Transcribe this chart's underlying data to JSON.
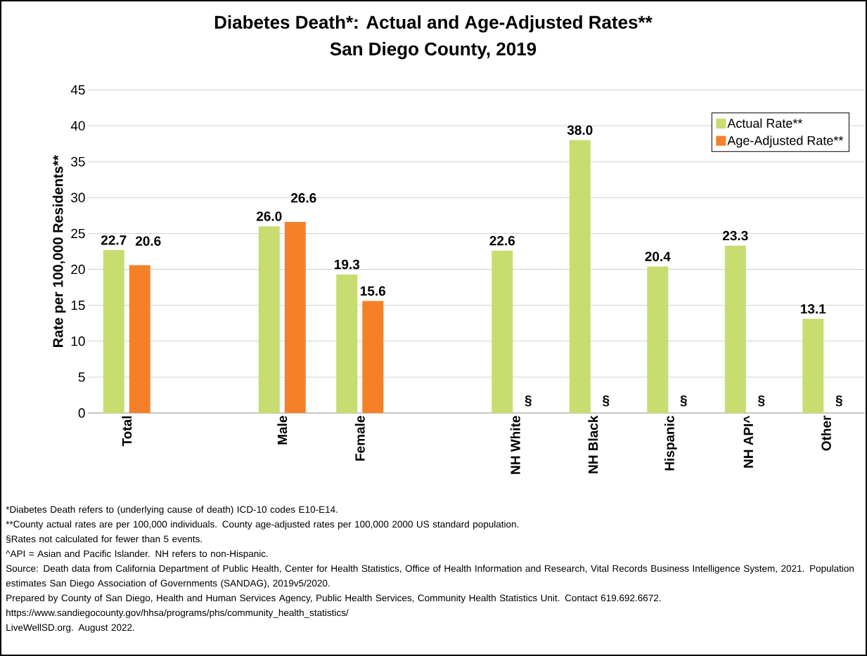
{
  "chart_data": {
    "type": "bar",
    "title": "Diabetes Death*: Actual and Age-Adjusted Rates**",
    "subtitle": "San Diego County, 2019",
    "ylabel": "Rate per 100,000 Residents**",
    "categories": [
      "Total",
      null,
      "Male",
      "Female",
      null,
      "NH White",
      "NH Black",
      "Hispanic",
      "NH API^",
      "Other"
    ],
    "series": [
      {
        "name": "Actual Rate**",
        "color": "#c7dd6f",
        "values": [
          22.7,
          null,
          26.0,
          19.3,
          null,
          22.6,
          38.0,
          20.4,
          23.3,
          13.1
        ],
        "value_labels": [
          "22.7",
          null,
          "26.0",
          "19.3",
          null,
          "22.6",
          "38.0",
          "20.4",
          "23.3",
          "13.1"
        ]
      },
      {
        "name": "Age-Adjusted Rate**",
        "color": "#f4812a",
        "values": [
          20.6,
          null,
          26.6,
          15.6,
          null,
          null,
          null,
          null,
          null,
          null
        ],
        "value_labels": [
          "20.6",
          null,
          "26.6",
          "15.6",
          null,
          "§",
          "§",
          "§",
          "§",
          "§"
        ]
      }
    ],
    "ylim": [
      0,
      45
    ],
    "yticks": [
      0,
      5,
      10,
      15,
      20,
      25,
      30,
      35,
      40,
      45
    ],
    "grid": "y",
    "legend": "top right",
    "annotations": [
      "*Diabetes Death refers to (underlying cause of death) ICD-10 codes E10-E14.",
      "**County actual rates are per 100,000 individuals.  County age-adjusted rates per 100,000 2000 US standard population.",
      "§Rates not calculated for fewer than 5 events.",
      "^API = Asian and Pacific Islander. NH refers to non-Hispanic.",
      "Source: Death data from California Department of Public Health, Center for Health Statistics, Office of Health Information and Research, Vital Records Business Intelligence System, 2021. Population estimates San Diego Association of Governments (SANDAG), 2019v5/2020.",
      "Prepared by County of San Diego, Health and Human Services Agency, Public Health Services, Community Health Statistics Unit. Contact 619.692.6672.",
      "https://www.sandiegocounty.gov/hhsa/programs/phs/community_health_statistics/",
      "LiveWellSD.org. August 2022."
    ]
  }
}
